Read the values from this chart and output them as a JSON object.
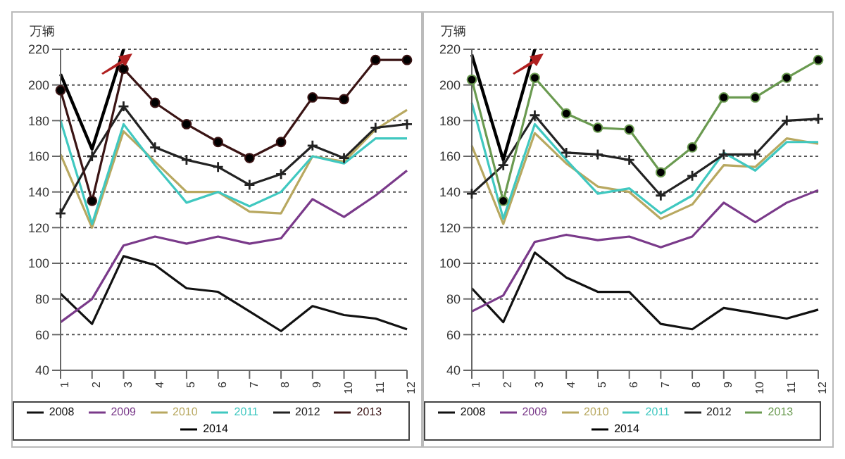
{
  "chart_data": [
    {
      "type": "line",
      "ylabel": "万辆",
      "categories": [
        "1",
        "2",
        "3",
        "4",
        "5",
        "6",
        "7",
        "8",
        "9",
        "10",
        "11",
        "12"
      ],
      "ylim": [
        40,
        220
      ],
      "yticks": [
        40,
        60,
        80,
        100,
        120,
        140,
        160,
        180,
        200,
        220
      ],
      "grid": "y",
      "legend": "bottom",
      "marker": "none",
      "series": [
        {
          "name": "2008",
          "color": "#111111",
          "values": [
            83,
            66,
            104,
            99,
            86,
            84,
            73,
            62,
            76,
            71,
            69,
            63
          ]
        },
        {
          "name": "2009",
          "color": "#7a3a8a",
          "values": [
            67,
            80,
            110,
            115,
            111,
            115,
            111,
            114,
            136,
            126,
            138,
            152
          ]
        },
        {
          "name": "2010",
          "color": "#b8a860",
          "values": [
            161,
            120,
            174,
            157,
            140,
            140,
            129,
            128,
            160,
            157,
            175,
            186
          ]
        },
        {
          "name": "2011",
          "color": "#40c8c0",
          "values": [
            180,
            122,
            178,
            155,
            134,
            140,
            132,
            140,
            160,
            156,
            170,
            170
          ]
        },
        {
          "name": "2012",
          "color": "#222222",
          "marker": "cross",
          "values": [
            128,
            160,
            188,
            165,
            158,
            154,
            144,
            150,
            166,
            159,
            176,
            178
          ]
        },
        {
          "name": "2013",
          "color": "#3a1414",
          "marker": "circle",
          "values": [
            197,
            135,
            209,
            190,
            178,
            168,
            159,
            168,
            193,
            192,
            214,
            214
          ]
        },
        {
          "name": "2014",
          "color": "#000000",
          "values": [
            206,
            164,
            220,
            null,
            null,
            null,
            null,
            null,
            null,
            null,
            null,
            null
          ]
        }
      ]
    },
    {
      "type": "line",
      "ylabel": "万辆",
      "categories": [
        "1",
        "2",
        "3",
        "4",
        "5",
        "6",
        "7",
        "8",
        "9",
        "10",
        "11",
        "12"
      ],
      "ylim": [
        40,
        220
      ],
      "yticks": [
        40,
        60,
        80,
        100,
        120,
        140,
        160,
        180,
        200,
        220
      ],
      "grid": "y",
      "legend": "bottom",
      "marker": "none",
      "series": [
        {
          "name": "2008",
          "color": "#111111",
          "values": [
            86,
            67,
            106,
            92,
            84,
            84,
            66,
            63,
            75,
            72,
            69,
            74
          ]
        },
        {
          "name": "2009",
          "color": "#7a3a8a",
          "values": [
            73,
            82,
            112,
            116,
            113,
            115,
            109,
            115,
            134,
            123,
            134,
            141
          ]
        },
        {
          "name": "2010",
          "color": "#b8a860",
          "values": [
            166,
            122,
            173,
            156,
            143,
            140,
            125,
            133,
            155,
            154,
            170,
            167
          ]
        },
        {
          "name": "2011",
          "color": "#40c8c0",
          "values": [
            190,
            125,
            178,
            158,
            139,
            142,
            128,
            138,
            162,
            152,
            168,
            168
          ]
        },
        {
          "name": "2012",
          "color": "#222222",
          "marker": "cross",
          "values": [
            139,
            155,
            183,
            162,
            161,
            158,
            138,
            149,
            161,
            161,
            180,
            181
          ]
        },
        {
          "name": "2013",
          "color": "#6a9a50",
          "marker": "circle",
          "values": [
            203,
            135,
            204,
            184,
            176,
            175,
            151,
            165,
            193,
            193,
            204,
            214
          ]
        },
        {
          "name": "2014",
          "color": "#000000",
          "values": [
            217,
            158,
            220,
            null,
            null,
            null,
            null,
            null,
            null,
            null,
            null,
            null
          ]
        }
      ]
    }
  ]
}
